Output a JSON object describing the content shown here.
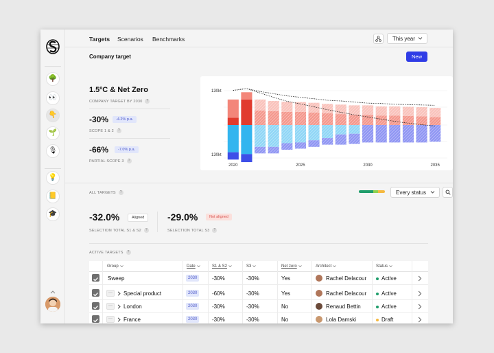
{
  "sidebar": {
    "items": [
      {
        "icon": "tree-icon",
        "glyph": "🌳"
      },
      {
        "icon": "eyes-icon",
        "glyph": "👀"
      },
      {
        "icon": "hand-icon",
        "glyph": "👇"
      },
      {
        "icon": "seedling-icon",
        "glyph": "🌱"
      },
      {
        "icon": "microphone-icon",
        "glyph": "🎙"
      },
      {
        "icon": "lightbulb-icon",
        "glyph": "💡"
      },
      {
        "icon": "notepad-icon",
        "glyph": "📒"
      },
      {
        "icon": "graduation-cap-icon",
        "glyph": "🎓"
      }
    ]
  },
  "nav": {
    "tabs": [
      "Targets",
      "Scenarios",
      "Benchmarks"
    ],
    "period": "This year"
  },
  "header": {
    "title": "Company target",
    "new_label": "New"
  },
  "summary": {
    "headline": "1.5ºC & Net Zero",
    "headline_caption": "COMPANY TARGET BY 2030",
    "scope12_value": "-30%",
    "scope12_badge": "-4.2% p.a.",
    "scope12_caption": "SCOPE 1 & 2",
    "scope3_value": "-66%",
    "scope3_badge": "-7.0% p.a.",
    "scope3_caption": "PARTIAL SCOPE 3"
  },
  "chart_data": {
    "type": "bar",
    "stacked": true,
    "diverging": true,
    "x_ticks": [
      "2020",
      "2025",
      "2030",
      "2035"
    ],
    "y_ticks": [
      "130kt",
      "130kt"
    ],
    "categories": [
      "2020",
      "2021",
      "2022",
      "2023",
      "2024",
      "2025",
      "2026",
      "2027",
      "2028",
      "2029",
      "2030",
      "2031",
      "2032",
      "2033",
      "2034",
      "2035"
    ],
    "series": [
      {
        "color": "#33b5ef",
        "values": [
          -75,
          -80,
          -60,
          -60,
          -50,
          -48,
          -42,
          -36,
          -26,
          -24,
          0,
          0,
          0,
          0,
          0,
          0
        ]
      },
      {
        "color": "#3d4ee8",
        "values": [
          -20,
          -22,
          -18,
          -18,
          -18,
          -17,
          -18,
          -18,
          -28,
          -28,
          -48,
          -48,
          -48,
          -48,
          -48,
          -46
        ]
      },
      {
        "color": "#e13b2e",
        "values": [
          20,
          70,
          40,
          38,
          36,
          36,
          34,
          32,
          30,
          28,
          28,
          26,
          26,
          25,
          24,
          22
        ]
      },
      {
        "color": "#f3867a",
        "values": [
          50,
          20,
          30,
          28,
          28,
          27,
          27,
          26,
          26,
          26,
          26,
          25,
          25,
          25,
          25,
          25
        ]
      }
    ],
    "trend_lines": [
      {
        "style": "dotted",
        "values": [
          95,
          100,
          92,
          86,
          80,
          76,
          72,
          68,
          66,
          63,
          60,
          59,
          57,
          56,
          55,
          54
        ]
      },
      {
        "style": "dotted",
        "values": [
          95,
          100,
          88,
          76,
          65,
          58,
          50,
          42,
          35,
          28,
          22,
          16,
          10,
          5,
          1,
          -3
        ]
      }
    ],
    "grid": true
  },
  "filters": {
    "all_targets_label": "ALL TARGETS",
    "status_select": "Every status",
    "progress": [
      {
        "color": "#1f9d6b",
        "fraction": 0.55
      },
      {
        "color": "#8fd14f",
        "fraction": 0.2
      },
      {
        "color": "#f5b940",
        "fraction": 0.25
      }
    ]
  },
  "selection": {
    "s12_value": "-32.0%",
    "s12_badge": "Aligned",
    "s12_caption": "SELECTION TOTAL S1 & S2",
    "s3_value": "-29.0%",
    "s3_badge": "Not aligned",
    "s3_caption": "SELECTION TOTAL S3"
  },
  "table": {
    "label": "ACTIVE TARGETS",
    "columns": [
      "Group",
      "Date",
      "S1 & S2",
      "S3",
      "Net zero",
      "Architect",
      "Status"
    ],
    "rows": [
      {
        "group": "Sweep",
        "date": "2030",
        "s12": "-30%",
        "s3": "-30%",
        "net_zero": "Yes",
        "architect": "Rachel Delacour",
        "status": "Active",
        "status_color": "#1f9d6b",
        "avatar_color": "#b0765a",
        "nested": false
      },
      {
        "group": "Special product",
        "date": "2030",
        "s12": "-60%",
        "s3": "-30%",
        "net_zero": "Yes",
        "architect": "Rachel Delacour",
        "status": "Active",
        "status_color": "#1f9d6b",
        "avatar_color": "#b0765a",
        "nested": true
      },
      {
        "group": "London",
        "date": "2030",
        "s12": "-30%",
        "s3": "-30%",
        "net_zero": "No",
        "architect": "Renaud Bettin",
        "status": "Active",
        "status_color": "#1f9d6b",
        "avatar_color": "#6b4a3a",
        "nested": true
      },
      {
        "group": "France",
        "date": "2030",
        "s12": "-30%",
        "s3": "-30%",
        "net_zero": "No",
        "architect": "Lola Damski",
        "status": "Draft",
        "status_color": "#f5b940",
        "avatar_color": "#c9986f",
        "nested": true
      }
    ]
  }
}
